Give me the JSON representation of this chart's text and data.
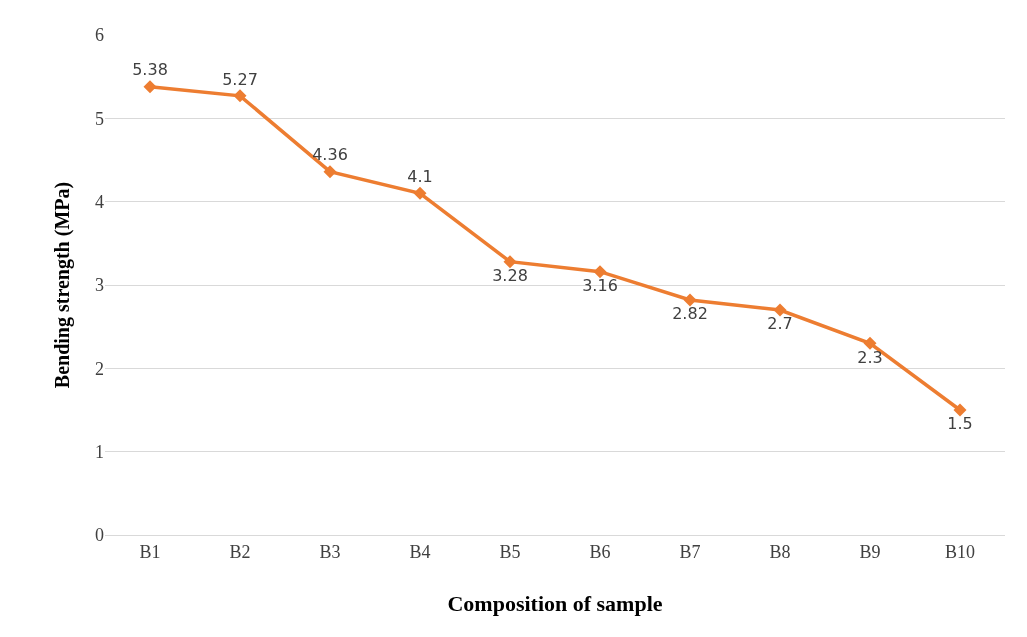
{
  "chart_data": {
    "type": "line",
    "xlabel": "Composition of sample",
    "ylabel": "Bending strength (MPa)",
    "categories": [
      "B1",
      "B2",
      "B3",
      "B4",
      "B5",
      "B6",
      "B7",
      "B8",
      "B9",
      "B10"
    ],
    "series": [
      {
        "color": "#ed7d31",
        "values": [
          5.38,
          5.27,
          4.36,
          4.1,
          3.28,
          3.16,
          2.82,
          2.7,
          2.3,
          1.5
        ]
      }
    ],
    "ylim": [
      0,
      6
    ],
    "yticks": [
      0,
      1,
      2,
      3,
      4,
      5,
      6
    ],
    "grid": "y",
    "marker": "diamond",
    "line_style": "solid",
    "data_labels": true,
    "legend": false
  }
}
